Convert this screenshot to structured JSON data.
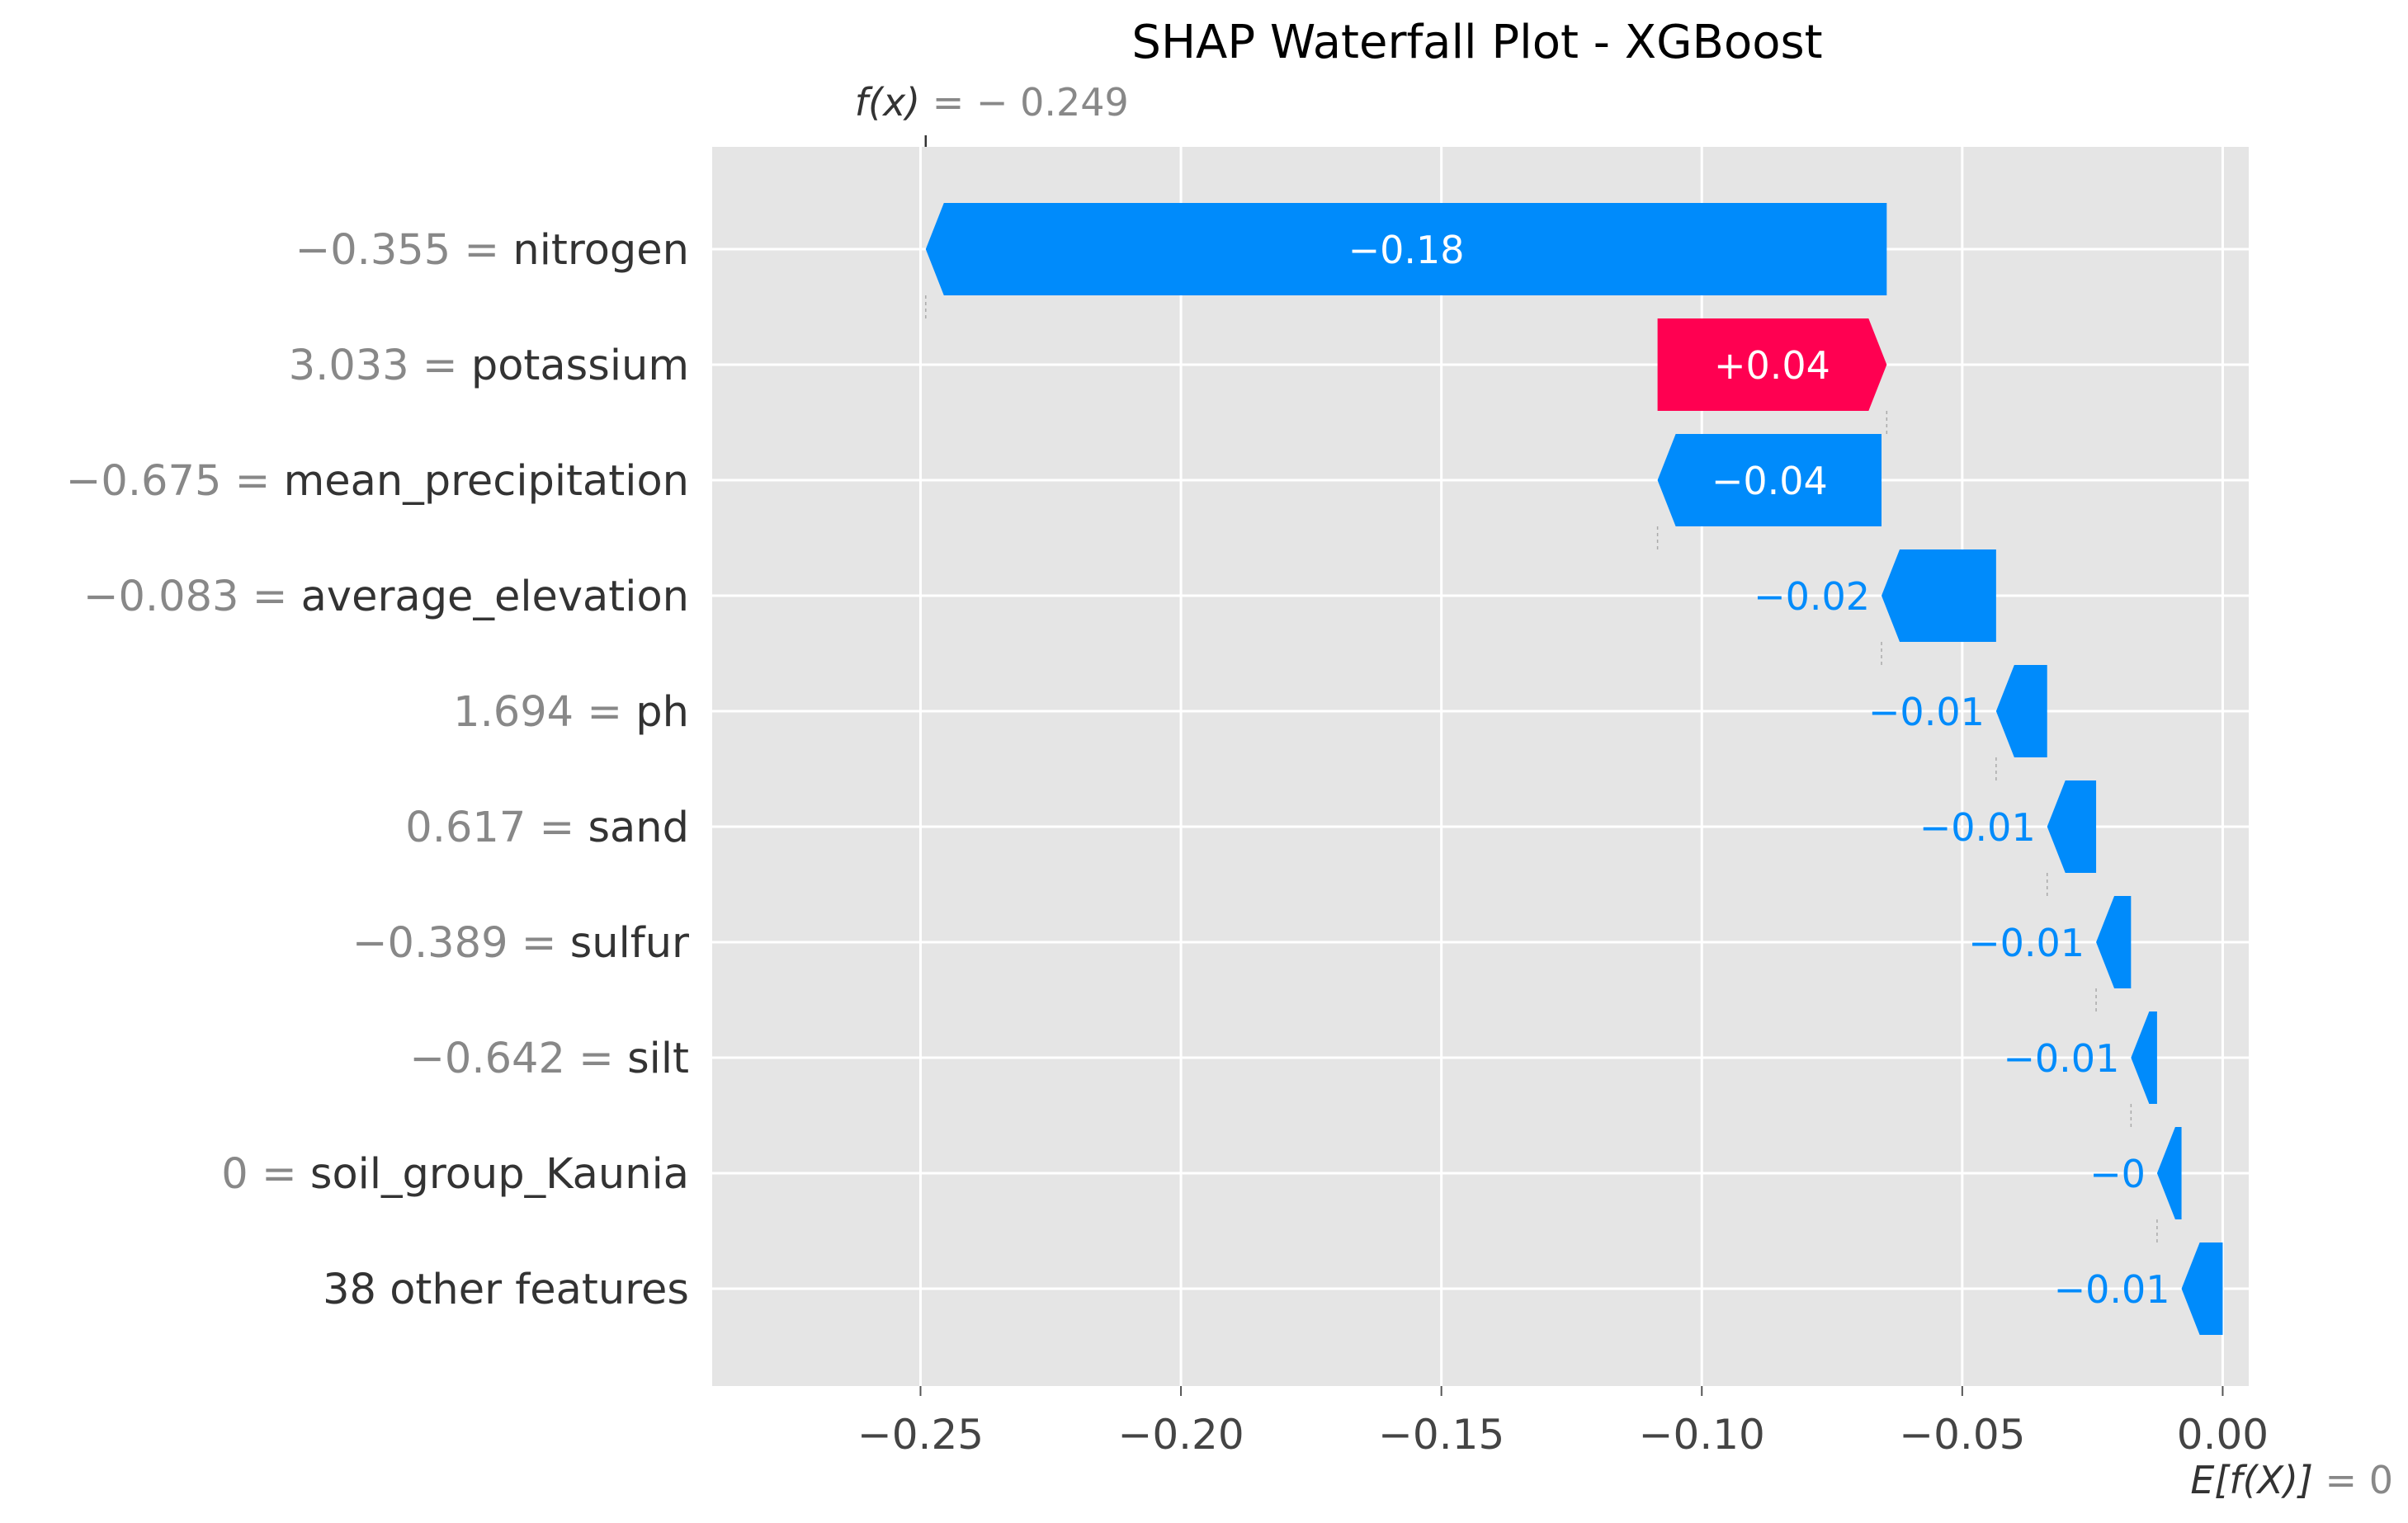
{
  "chart_data": {
    "type": "bar",
    "subtype": "shap-waterfall",
    "title": "SHAP Waterfall Plot - XGBoost",
    "xlim": [
      -0.29,
      0.005
    ],
    "xticks": [
      {
        "value": -0.25,
        "label": "−0.25"
      },
      {
        "value": -0.2,
        "label": "−0.20"
      },
      {
        "value": -0.15,
        "label": "−0.15"
      },
      {
        "value": -0.1,
        "label": "−0.10"
      },
      {
        "value": -0.05,
        "label": "−0.05"
      },
      {
        "value": 0.0,
        "label": "0.00"
      }
    ],
    "grid": true,
    "fx": {
      "value": -0.249,
      "name": "f(x)",
      "value_label": "− 0.249",
      "eq": " = "
    },
    "base": {
      "value": 0,
      "name": "E[f(X)]",
      "value_label": "0",
      "eq": " = "
    },
    "colors": {
      "positive": "#ff0051",
      "negative": "#008bfb",
      "neutral": "#888888",
      "background": "#e5e5e5"
    },
    "features": [
      {
        "value_label": "−0.355",
        "eq": " = ",
        "name": "nitrogen",
        "start": -0.0645,
        "end": -0.249,
        "contribution_label": "−0.18"
      },
      {
        "value_label": "3.033",
        "eq": " = ",
        "name": "potassium",
        "start": -0.1085,
        "end": -0.0645,
        "contribution_label": "+0.04"
      },
      {
        "value_label": "−0.675",
        "eq": " = ",
        "name": "mean_precipitation",
        "start": -0.0655,
        "end": -0.1085,
        "contribution_label": "−0.04"
      },
      {
        "value_label": "−0.083",
        "eq": " = ",
        "name": "average_elevation",
        "start": -0.0435,
        "end": -0.0655,
        "contribution_label": "−0.02"
      },
      {
        "value_label": "1.694",
        "eq": " = ",
        "name": "ph",
        "start": -0.0337,
        "end": -0.0435,
        "contribution_label": "−0.01"
      },
      {
        "value_label": "0.617",
        "eq": " = ",
        "name": "sand",
        "start": -0.0243,
        "end": -0.0337,
        "contribution_label": "−0.01"
      },
      {
        "value_label": "−0.389",
        "eq": " = ",
        "name": "sulfur",
        "start": -0.0176,
        "end": -0.0243,
        "contribution_label": "−0.01"
      },
      {
        "value_label": "−0.642",
        "eq": " = ",
        "name": "silt",
        "start": -0.0126,
        "end": -0.0176,
        "contribution_label": "−0.01"
      },
      {
        "value_label": "0",
        "eq": " = ",
        "name": "soil_group_Kaunia",
        "start": -0.0079,
        "end": -0.0126,
        "contribution_label": "−0"
      },
      {
        "value_label": "",
        "eq": "",
        "name": "38 other features",
        "start": 0.0,
        "end": -0.0079,
        "contribution_label": "−0.01"
      }
    ]
  }
}
